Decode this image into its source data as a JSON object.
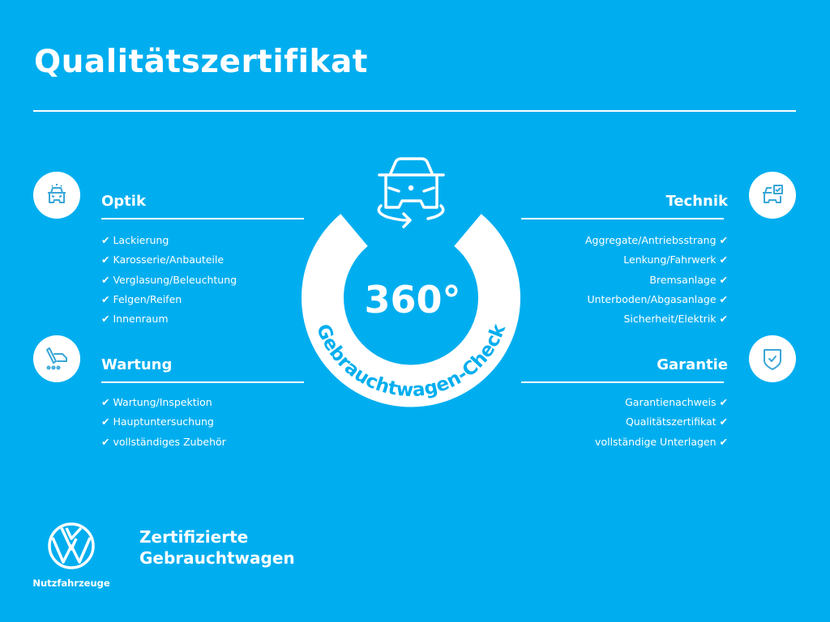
{
  "title": "Qualitätszertifikat",
  "colors": {
    "background": "#00AEEF",
    "foreground": "#FFFFFF"
  },
  "center": {
    "badge_number": "360°",
    "badge_text": "Gebrauchtwagen-Check",
    "icon": "car-rotate-icon"
  },
  "check_mark": "✔",
  "sections": {
    "optik": {
      "heading": "Optik",
      "icon": "car-front-icon",
      "items": [
        "Lackierung",
        "Karosserie/Anbauteile",
        "Verglasung/Beleuchtung",
        "Felgen/Reifen",
        "Innenraum"
      ]
    },
    "wartung": {
      "heading": "Wartung",
      "icon": "service-tools-icon",
      "items": [
        "Wartung/Inspektion",
        "Hauptuntersuchung",
        "vollständiges Zubehör"
      ]
    },
    "technik": {
      "heading": "Technik",
      "icon": "car-checklist-icon",
      "items": [
        "Aggregate/Antriebsstrang",
        "Lenkung/Fahrwerk",
        "Bremsanlage",
        "Unterboden/Abgasanlage",
        "Sicherheit/Elektrik"
      ]
    },
    "garantie": {
      "heading": "Garantie",
      "icon": "shield-check-icon",
      "items": [
        "Garantienachweis",
        "Qualitätszertifikat",
        "vollständige Unterlagen"
      ]
    }
  },
  "footer": {
    "logo": "VW",
    "brand": "Nutzfahrzeuge",
    "line1": "Zertifizierte",
    "line2": "Gebrauchtwagen"
  }
}
